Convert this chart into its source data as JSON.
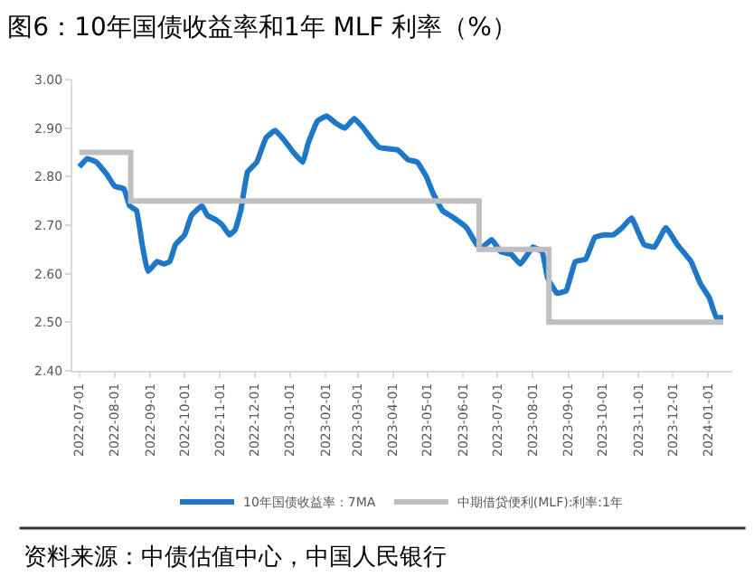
{
  "chart_data": {
    "type": "line",
    "title": "图6：10年国债收益率和1年 MLF 利率（%）",
    "xlim": [
      "2022-06-25",
      "2024-01-22"
    ],
    "xticks": [
      {
        "value": "2022-07-01",
        "label": "2022-07-01"
      },
      {
        "value": "2022-08-01",
        "label": "2022-08-01"
      },
      {
        "value": "2022-09-01",
        "label": "2022-09-01"
      },
      {
        "value": "2022-10-01",
        "label": "2022-10-01"
      },
      {
        "value": "2022-11-01",
        "label": "2022-11-01"
      },
      {
        "value": "2022-12-01",
        "label": "2022-12-01"
      },
      {
        "value": "2023-01-01",
        "label": "2023-01-01"
      },
      {
        "value": "2023-02-01",
        "label": "2023-02-01"
      },
      {
        "value": "2023-03-01",
        "label": "2023-03-01"
      },
      {
        "value": "2023-04-01",
        "label": "2023-04-01"
      },
      {
        "value": "2023-05-01",
        "label": "2023-05-01"
      },
      {
        "value": "2023-06-01",
        "label": "2023-06-01"
      },
      {
        "value": "2023-07-01",
        "label": "2023-07-01"
      },
      {
        "value": "2023-08-01",
        "label": "2023-08-01"
      },
      {
        "value": "2023-09-01",
        "label": "2023-09-01"
      },
      {
        "value": "2023-10-01",
        "label": "2023-10-01"
      },
      {
        "value": "2023-11-01",
        "label": "2023-11-01"
      },
      {
        "value": "2023-12-01",
        "label": "2023-12-01"
      },
      {
        "value": "2024-01-01",
        "label": "2024-01-01"
      }
    ],
    "ylim": [
      2.4,
      3.0
    ],
    "yticks": [
      {
        "value": 2.4,
        "label": "2.40"
      },
      {
        "value": 2.5,
        "label": "2.50"
      },
      {
        "value": 2.6,
        "label": "2.60"
      },
      {
        "value": 2.7,
        "label": "2.70"
      },
      {
        "value": 2.8,
        "label": "2.80"
      },
      {
        "value": 2.9,
        "label": "2.90"
      },
      {
        "value": 3.0,
        "label": "3.00"
      }
    ],
    "legend": "bottom",
    "series": [
      {
        "name": "10年国债收益率：7MA",
        "type": "line",
        "color": "#1f77c8",
        "x": [
          "2022-07-01",
          "2022-07-08",
          "2022-07-16",
          "2022-07-25",
          "2022-08-01",
          "2022-08-09",
          "2022-08-14",
          "2022-08-20",
          "2022-08-25",
          "2022-08-30",
          "2022-09-07",
          "2022-09-13",
          "2022-09-18",
          "2022-09-23",
          "2022-10-01",
          "2022-10-07",
          "2022-10-16",
          "2022-10-21",
          "2022-10-29",
          "2022-11-03",
          "2022-11-09",
          "2022-11-14",
          "2022-11-19",
          "2022-11-25",
          "2022-12-03",
          "2022-12-11",
          "2022-12-19",
          "2022-12-27",
          "2023-01-04",
          "2023-01-12",
          "2023-01-17",
          "2023-01-25",
          "2023-02-02",
          "2023-02-10",
          "2023-02-18",
          "2023-02-26",
          "2023-03-06",
          "2023-03-14",
          "2023-03-20",
          "2023-04-05",
          "2023-04-14",
          "2023-04-22",
          "2023-04-30",
          "2023-05-06",
          "2023-05-14",
          "2023-05-24",
          "2023-06-04",
          "2023-06-13",
          "2023-06-18",
          "2023-06-26",
          "2023-07-04",
          "2023-07-13",
          "2023-07-21",
          "2023-08-01",
          "2023-08-09",
          "2023-08-14",
          "2023-08-22",
          "2023-08-30",
          "2023-09-07",
          "2023-09-16",
          "2023-09-24",
          "2023-10-02",
          "2023-10-10",
          "2023-10-18",
          "2023-10-26",
          "2023-11-06",
          "2023-11-15",
          "2023-11-25",
          "2023-12-05",
          "2023-12-17",
          "2023-12-25",
          "2024-01-02",
          "2024-01-08",
          "2024-01-14"
        ],
        "values": [
          2.82,
          2.837,
          2.83,
          2.805,
          2.78,
          2.775,
          2.74,
          2.73,
          2.66,
          2.605,
          2.625,
          2.62,
          2.625,
          2.66,
          2.68,
          2.72,
          2.74,
          2.72,
          2.71,
          2.7,
          2.68,
          2.69,
          2.73,
          2.81,
          2.83,
          2.88,
          2.895,
          2.875,
          2.85,
          2.83,
          2.87,
          2.915,
          2.925,
          2.91,
          2.9,
          2.92,
          2.9,
          2.875,
          2.86,
          2.855,
          2.835,
          2.83,
          2.8,
          2.765,
          2.73,
          2.715,
          2.695,
          2.66,
          2.655,
          2.67,
          2.645,
          2.64,
          2.62,
          2.655,
          2.645,
          2.59,
          2.56,
          2.565,
          2.625,
          2.63,
          2.675,
          2.68,
          2.68,
          2.695,
          2.715,
          2.66,
          2.655,
          2.695,
          2.66,
          2.625,
          2.58,
          2.55,
          2.51,
          2.51
        ]
      },
      {
        "name": "中期借贷便利(MLF):利率:1年",
        "type": "step",
        "color": "#bfbfbf",
        "x": [
          "2022-07-01",
          "2022-08-15",
          "2023-06-15",
          "2023-08-15",
          "2024-01-14"
        ],
        "values": [
          2.85,
          2.75,
          2.65,
          2.5,
          2.5
        ]
      }
    ],
    "annotations": [
      "资料来源：中债估值中心，中国人民银行"
    ]
  }
}
